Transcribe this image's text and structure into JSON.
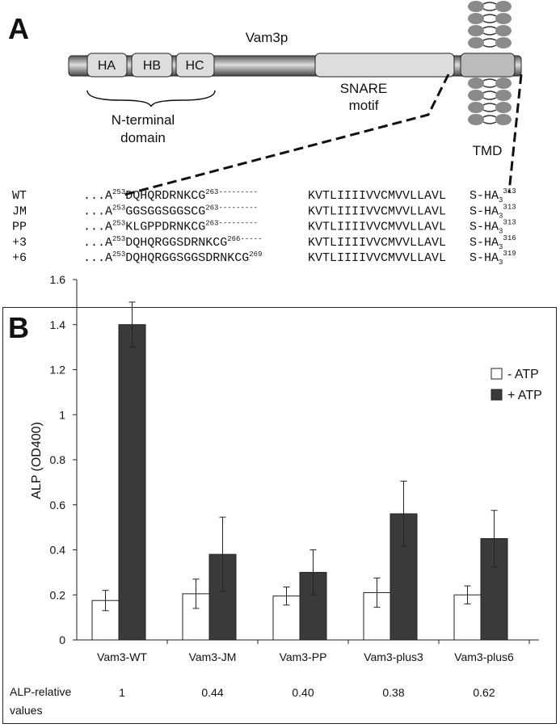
{
  "panel_a": {
    "label": "A",
    "protein": "Vam3p",
    "domains": [
      "HA",
      "HB",
      "HC"
    ],
    "n_terminal": [
      "N-terminal",
      "domain"
    ],
    "snare": [
      "SNARE",
      "motif"
    ],
    "tmd": "TMD",
    "sequences": [
      {
        "name": "WT",
        "prefix": "...A",
        "start": "253",
        "core": "DQHQRDRNKCG",
        "end": "263",
        "dashes": "---------",
        "tm": "KVTLIIIIVVCMVVLLAVL",
        "tail": "S-HA",
        "sub": "3",
        "last": "313"
      },
      {
        "name": "JM",
        "prefix": "...A",
        "start": "253",
        "core": "GGSGGSGGSCG",
        "end": "263",
        "dashes": "---------",
        "tm": "KVTLIIIIVVCMVVLLAVL",
        "tail": "S-HA",
        "sub": "3",
        "last": "313"
      },
      {
        "name": "PP",
        "prefix": "...A",
        "start": "253",
        "core": "KLGPPDRNKCG",
        "end": "263",
        "dashes": "---------",
        "tm": "KVTLIIIIVVCMVVLLAVL",
        "tail": "S-HA",
        "sub": "3",
        "last": "313"
      },
      {
        "name": "+3",
        "prefix": "...A",
        "start": "253",
        "core": "DQHQRGGSDRNKCG",
        "end": "266",
        "dashes": "-----",
        "tm": "KVTLIIIIVVCMVVLLAVL",
        "tail": "S-HA",
        "sub": "3",
        "last": "316"
      },
      {
        "name": "+6",
        "prefix": "...A",
        "start": "253",
        "core": "DQHQRGGSGGSDRNKCG",
        "end": "269",
        "tm": "KVTLIIIIVVCMVVLLAVL",
        "tail": "S-HA",
        "sub": "3",
        "last": "319"
      }
    ]
  },
  "chart_data": {
    "type": "bar",
    "panel_label": "B",
    "y_label": "ALP (OD400)",
    "categories": [
      "Vam3-WT",
      "Vam3-JM",
      "Vam3-PP",
      "Vam3-plus3",
      "Vam3-plus6"
    ],
    "series": [
      {
        "name": "- ATP",
        "color": "#ffffff",
        "values": [
          0.175,
          0.205,
          0.195,
          0.21,
          0.2
        ],
        "errors": [
          0.045,
          0.065,
          0.04,
          0.065,
          0.04
        ]
      },
      {
        "name": "+ ATP",
        "color": "#3a3a3a",
        "values": [
          1.4,
          0.38,
          0.3,
          0.56,
          0.45
        ],
        "errors": [
          0.1,
          0.165,
          0.1,
          0.145,
          0.125
        ]
      }
    ],
    "ylim": [
      0,
      1.6
    ],
    "yticks": [
      0,
      0.2,
      0.4,
      0.6,
      0.8,
      1,
      1.2,
      1.4,
      1.6
    ],
    "legend": "top-right",
    "relative_label": [
      "ALP-relative",
      "values"
    ],
    "relative_values": [
      "1",
      "0.44",
      "0.40",
      "0.38",
      "0.62"
    ]
  }
}
